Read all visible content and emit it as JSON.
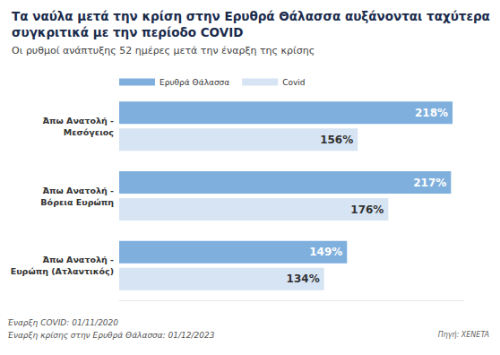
{
  "chart_data": {
    "type": "bar",
    "orientation": "horizontal",
    "title": "Τα ναύλα μετά την κρίση στην Ερυθρά Θάλασσα αυξάνονται ταχύτερα\nσυγκριτικά με την περίοδο COVID",
    "subtitle": "Οι ρυθμοί ανάπτυξης 52 ημέρες μετά την έναρξη της κρίσης",
    "categories": [
      "Άπω Ανατολή -\nΜεσόγειος",
      "Άπω Ανατολή -\nΒόρεια Ευρώπη",
      "Άπω Ανατολή -\nΕυρώπη (Ατλαντικός)"
    ],
    "series": [
      {
        "name": "Ερυθρά Θάλασσα",
        "color": "#7fb0dd",
        "values": [
          218,
          217,
          149
        ],
        "value_labels": [
          "218%",
          "217%",
          "149%"
        ]
      },
      {
        "name": "Covid",
        "color": "#d6e4f3",
        "values": [
          156,
          176,
          134
        ],
        "value_labels": [
          "156%",
          "176%",
          "134%"
        ]
      }
    ],
    "xlim": [
      0,
      225
    ],
    "grid": false,
    "legend": "top-left",
    "data_labels": true,
    "tick_labels": false,
    "annotations": [
      "Έναρξη COVID: 01/11/2020",
      "Έναρξη κρίσης στην Ερυθρά Θάλασσα: 01/12/2023"
    ],
    "source": "Πηγή: XENETA"
  }
}
